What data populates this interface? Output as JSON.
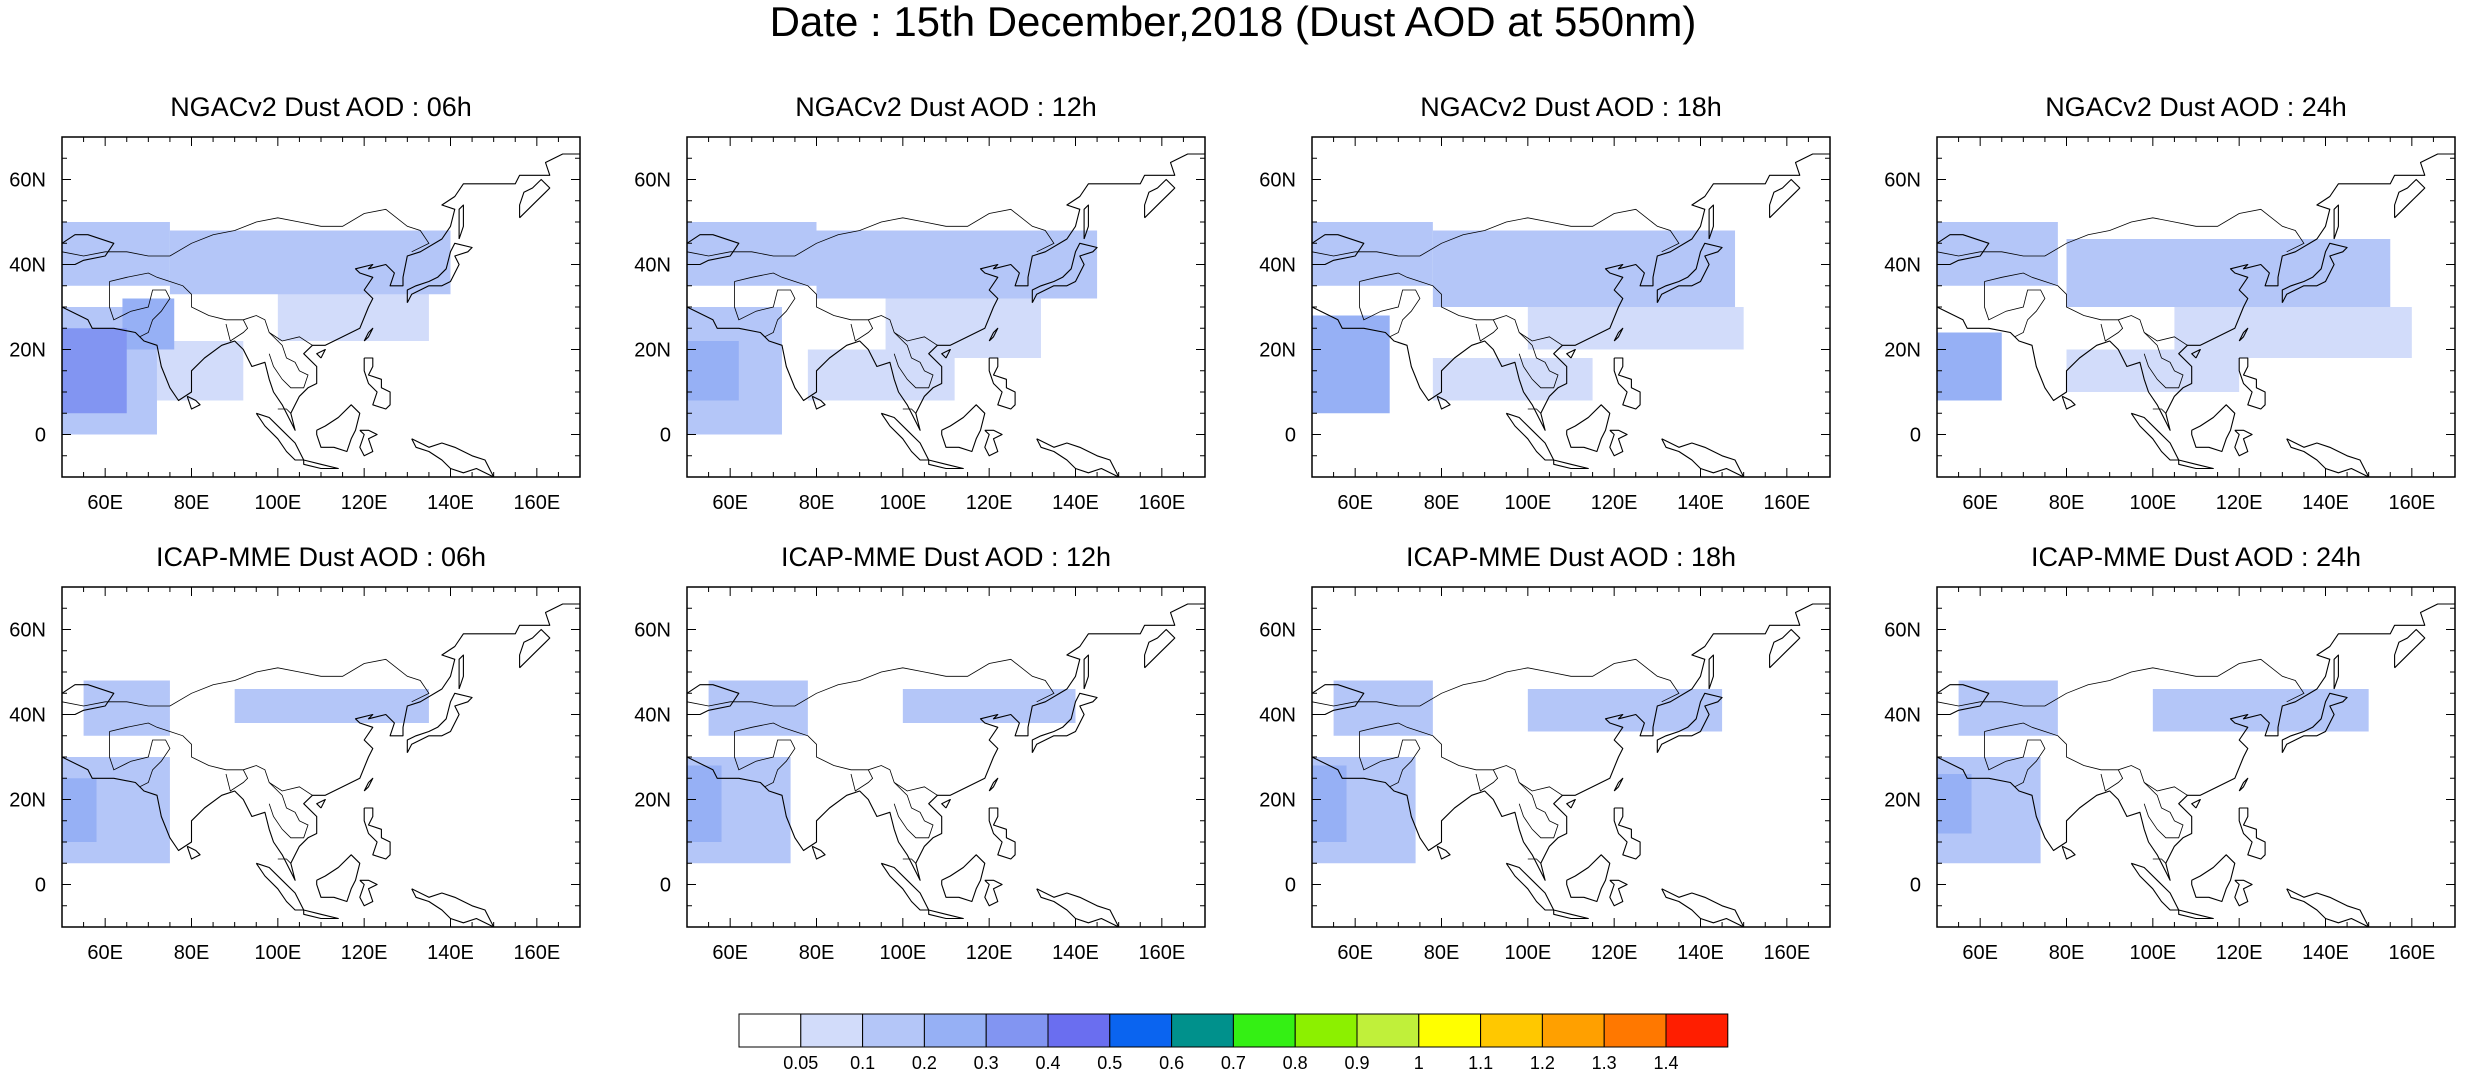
{
  "title": "Date : 15th December,2018 (Dust AOD at 550nm)",
  "panels": [
    {
      "title": "NGACv2 Dust AOD : 06h",
      "model": "NGACv2",
      "lead": "06h"
    },
    {
      "title": "NGACv2 Dust AOD : 12h",
      "model": "NGACv2",
      "lead": "12h"
    },
    {
      "title": "NGACv2 Dust AOD : 18h",
      "model": "NGACv2",
      "lead": "18h"
    },
    {
      "title": "NGACv2 Dust AOD : 24h",
      "model": "NGACv2",
      "lead": "24h"
    },
    {
      "title": "ICAP-MME Dust AOD : 06h",
      "model": "ICAP-MME",
      "lead": "06h"
    },
    {
      "title": "ICAP-MME Dust AOD : 12h",
      "model": "ICAP-MME",
      "lead": "12h"
    },
    {
      "title": "ICAP-MME Dust AOD : 18h",
      "model": "ICAP-MME",
      "lead": "18h"
    },
    {
      "title": "ICAP-MME Dust AOD : 24h",
      "model": "ICAP-MME",
      "lead": "24h"
    }
  ],
  "map_extent": {
    "lon_min": 50,
    "lon_max": 170,
    "lat_min": -10,
    "lat_max": 70
  },
  "x_ticks": [
    {
      "value": 60,
      "label": "60E"
    },
    {
      "value": 80,
      "label": "80E"
    },
    {
      "value": 100,
      "label": "100E"
    },
    {
      "value": 120,
      "label": "120E"
    },
    {
      "value": 140,
      "label": "140E"
    },
    {
      "value": 160,
      "label": "160E"
    }
  ],
  "y_ticks": [
    {
      "value": 0,
      "label": "0"
    },
    {
      "value": 20,
      "label": "20N"
    },
    {
      "value": 40,
      "label": "40N"
    },
    {
      "value": 60,
      "label": "60N"
    }
  ],
  "colorbar": {
    "labels": [
      "0.05",
      "0.1",
      "0.2",
      "0.3",
      "0.4",
      "0.5",
      "0.6",
      "0.7",
      "0.8",
      "0.9",
      "1",
      "1.1",
      "1.2",
      "1.3",
      "1.4"
    ],
    "colors": [
      "#ffffff",
      "#d2dcfa",
      "#b4c6f8",
      "#96b0f5",
      "#8295f2",
      "#6a6ef0",
      "#0a64f0",
      "#00918c",
      "#34f014",
      "#8cf000",
      "#c0f03a",
      "#ffff00",
      "#ffc800",
      "#ffa000",
      "#ff7800",
      "#ff1e00"
    ]
  },
  "chart_data": {
    "type": "heatmap",
    "variable": "Dust AOD at 550nm",
    "levels": [
      0.05,
      0.1,
      0.2,
      0.3,
      0.4,
      0.5,
      0.6,
      0.7,
      0.8,
      0.9,
      1,
      1.1,
      1.2,
      1.3,
      1.4
    ],
    "fields": [
      {
        "panel": "NGACv2 Dust AOD : 06h",
        "regions": [
          {
            "lon": [
              50,
              65
            ],
            "lat": [
              5,
              25
            ],
            "aod": 0.3
          },
          {
            "lon": [
              50,
              72
            ],
            "lat": [
              0,
              30
            ],
            "aod": 0.15
          },
          {
            "lon": [
              64,
              76
            ],
            "lat": [
              20,
              32
            ],
            "aod": 0.2
          },
          {
            "lon": [
              50,
              75
            ],
            "lat": [
              35,
              50
            ],
            "aod": 0.1
          },
          {
            "lon": [
              75,
              140
            ],
            "lat": [
              33,
              48
            ],
            "aod": 0.1
          },
          {
            "lon": [
              100,
              135
            ],
            "lat": [
              22,
              34
            ],
            "aod": 0.08
          },
          {
            "lon": [
              72,
              92
            ],
            "lat": [
              8,
              22
            ],
            "aod": 0.08
          }
        ]
      },
      {
        "panel": "NGACv2 Dust AOD : 12h",
        "regions": [
          {
            "lon": [
              50,
              62
            ],
            "lat": [
              8,
              22
            ],
            "aod": 0.25
          },
          {
            "lon": [
              50,
              72
            ],
            "lat": [
              0,
              30
            ],
            "aod": 0.15
          },
          {
            "lon": [
              50,
              80
            ],
            "lat": [
              35,
              50
            ],
            "aod": 0.1
          },
          {
            "lon": [
              80,
              145
            ],
            "lat": [
              32,
              48
            ],
            "aod": 0.1
          },
          {
            "lon": [
              96,
              132
            ],
            "lat": [
              18,
              32
            ],
            "aod": 0.08
          },
          {
            "lon": [
              78,
              112
            ],
            "lat": [
              8,
              20
            ],
            "aod": 0.08
          }
        ]
      },
      {
        "panel": "NGACv2 Dust AOD : 18h",
        "regions": [
          {
            "lon": [
              50,
              68
            ],
            "lat": [
              5,
              28
            ],
            "aod": 0.2
          },
          {
            "lon": [
              50,
              78
            ],
            "lat": [
              35,
              50
            ],
            "aod": 0.1
          },
          {
            "lon": [
              78,
              148
            ],
            "lat": [
              30,
              48
            ],
            "aod": 0.1
          },
          {
            "lon": [
              100,
              150
            ],
            "lat": [
              20,
              30
            ],
            "aod": 0.08
          },
          {
            "lon": [
              78,
              115
            ],
            "lat": [
              8,
              18
            ],
            "aod": 0.08
          }
        ]
      },
      {
        "panel": "NGACv2 Dust AOD : 24h",
        "regions": [
          {
            "lon": [
              50,
              65
            ],
            "lat": [
              8,
              24
            ],
            "aod": 0.2
          },
          {
            "lon": [
              50,
              78
            ],
            "lat": [
              35,
              50
            ],
            "aod": 0.1
          },
          {
            "lon": [
              80,
              155
            ],
            "lat": [
              30,
              46
            ],
            "aod": 0.1
          },
          {
            "lon": [
              105,
              160
            ],
            "lat": [
              18,
              30
            ],
            "aod": 0.08
          },
          {
            "lon": [
              80,
              120
            ],
            "lat": [
              10,
              20
            ],
            "aod": 0.08
          }
        ]
      },
      {
        "panel": "ICAP-MME Dust AOD : 06h",
        "regions": [
          {
            "lon": [
              50,
              58
            ],
            "lat": [
              10,
              25
            ],
            "aod": 0.25
          },
          {
            "lon": [
              50,
              75
            ],
            "lat": [
              5,
              30
            ],
            "aod": 0.12
          },
          {
            "lon": [
              55,
              75
            ],
            "lat": [
              35,
              48
            ],
            "aod": 0.1
          },
          {
            "lon": [
              90,
              135
            ],
            "lat": [
              38,
              46
            ],
            "aod": 0.12
          }
        ]
      },
      {
        "panel": "ICAP-MME Dust AOD : 12h",
        "regions": [
          {
            "lon": [
              50,
              58
            ],
            "lat": [
              10,
              28
            ],
            "aod": 0.2
          },
          {
            "lon": [
              50,
              74
            ],
            "lat": [
              5,
              30
            ],
            "aod": 0.1
          },
          {
            "lon": [
              55,
              78
            ],
            "lat": [
              35,
              48
            ],
            "aod": 0.1
          },
          {
            "lon": [
              100,
              140
            ],
            "lat": [
              38,
              46
            ],
            "aod": 0.12
          }
        ]
      },
      {
        "panel": "ICAP-MME Dust AOD : 18h",
        "regions": [
          {
            "lon": [
              50,
              58
            ],
            "lat": [
              10,
              28
            ],
            "aod": 0.2
          },
          {
            "lon": [
              50,
              74
            ],
            "lat": [
              5,
              30
            ],
            "aod": 0.1
          },
          {
            "lon": [
              55,
              78
            ],
            "lat": [
              35,
              48
            ],
            "aod": 0.1
          },
          {
            "lon": [
              100,
              145
            ],
            "lat": [
              36,
              46
            ],
            "aod": 0.12
          }
        ]
      },
      {
        "panel": "ICAP-MME Dust AOD : 24h",
        "regions": [
          {
            "lon": [
              50,
              58
            ],
            "lat": [
              12,
              26
            ],
            "aod": 0.2
          },
          {
            "lon": [
              50,
              74
            ],
            "lat": [
              5,
              30
            ],
            "aod": 0.1
          },
          {
            "lon": [
              55,
              78
            ],
            "lat": [
              35,
              48
            ],
            "aod": 0.1
          },
          {
            "lon": [
              100,
              150
            ],
            "lat": [
              36,
              46
            ],
            "aod": 0.12
          }
        ]
      }
    ]
  }
}
